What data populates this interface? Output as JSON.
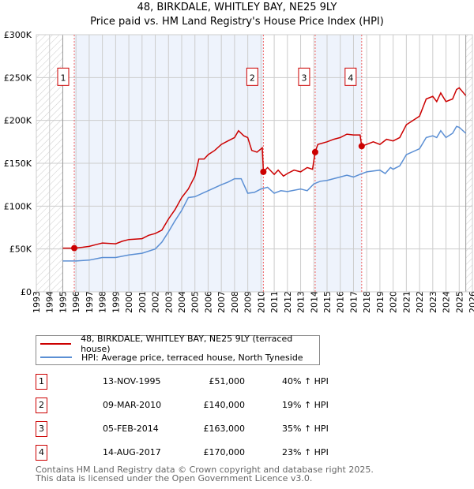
{
  "title_line1": "48, BIRKDALE, WHITLEY BAY, NE25 9LY",
  "title_line2": "Price paid vs. HM Land Registry's House Price Index (HPI)",
  "chart_data": {
    "type": "line",
    "title": "Price paid vs. HM Land Registry's House Price Index (HPI)",
    "xlim": [
      1993,
      2026
    ],
    "ylim": [
      0,
      300000
    ],
    "y_ticks": [
      0,
      50000,
      100000,
      150000,
      200000,
      250000,
      300000
    ],
    "y_tick_labels": [
      "£0",
      "£50K",
      "£100K",
      "£150K",
      "£200K",
      "£250K",
      "£300K"
    ],
    "x_ticks": [
      "1993",
      "1994",
      "1995",
      "1996",
      "1997",
      "1998",
      "1999",
      "2000",
      "2001",
      "2002",
      "2003",
      "2004",
      "2005",
      "2006",
      "2007",
      "2008",
      "2009",
      "2010",
      "2011",
      "2012",
      "2013",
      "2014",
      "2015",
      "2016",
      "2017",
      "2018",
      "2019",
      "2020",
      "2021",
      "2022",
      "2023",
      "2024",
      "2025",
      "2026"
    ],
    "grid": true,
    "data_range": [
      1995.0,
      2025.5
    ],
    "shaded_ranges": [
      [
        1995.87,
        2010.18
      ],
      [
        2014.1,
        2017.62
      ]
    ],
    "series": [
      {
        "name": "48, BIRKDALE, WHITLEY BAY, NE25 9LY (terraced house)",
        "color": "#cc0000",
        "x": [
          1995.0,
          1995.87,
          1996.5,
          1997,
          1997.5,
          1998,
          1999,
          1999.5,
          2000,
          2001,
          2001.5,
          2002,
          2002.5,
          2003,
          2003.5,
          2004,
          2004.5,
          2005,
          2005.3,
          2005.7,
          2006,
          2006.5,
          2007,
          2007.5,
          2008,
          2008.3,
          2008.7,
          2009,
          2009.3,
          2009.7,
          2010.1,
          2010.18,
          2010.5,
          2011,
          2011.3,
          2011.7,
          2012,
          2012.5,
          2013,
          2013.5,
          2013.9,
          2014.1,
          2014.3,
          2015,
          2015.5,
          2016,
          2016.5,
          2017,
          2017.5,
          2017.62,
          2018,
          2018.5,
          2019,
          2019.5,
          2020,
          2020.5,
          2021,
          2021.5,
          2022,
          2022.5,
          2023,
          2023.3,
          2023.6,
          2024,
          2024.5,
          2024.8,
          2025,
          2025.5
        ],
        "y": [
          51000,
          51000,
          52000,
          53000,
          55000,
          57000,
          56000,
          59000,
          61000,
          62000,
          66000,
          68000,
          72000,
          85000,
          96000,
          110000,
          120000,
          135000,
          155000,
          155000,
          160000,
          165000,
          172000,
          176000,
          180000,
          188000,
          182000,
          180000,
          165000,
          163000,
          168000,
          140000,
          145000,
          137000,
          142000,
          135000,
          138000,
          142000,
          140000,
          145000,
          143000,
          163000,
          172000,
          175000,
          178000,
          180000,
          184000,
          183000,
          183000,
          170000,
          172000,
          175000,
          172000,
          178000,
          176000,
          180000,
          195000,
          200000,
          205000,
          225000,
          228000,
          222000,
          232000,
          222000,
          225000,
          236000,
          238000,
          229000
        ]
      },
      {
        "name": "HPI: Average price, terraced house, North Tyneside",
        "color": "#5b8fd4",
        "x": [
          1995,
          1996,
          1997,
          1998,
          1999,
          2000,
          2001,
          2002,
          2002.5,
          2003,
          2003.5,
          2004,
          2004.5,
          2005,
          2006,
          2007,
          2007.5,
          2008,
          2008.5,
          2009,
          2009.5,
          2010,
          2010.5,
          2011,
          2011.5,
          2012,
          2013,
          2013.5,
          2014,
          2014.5,
          2015,
          2016,
          2016.5,
          2017,
          2017.5,
          2018,
          2019,
          2019.4,
          2019.8,
          2020,
          2020.5,
          2021,
          2022,
          2022.5,
          2023,
          2023.3,
          2023.6,
          2024,
          2024.5,
          2024.8,
          2025,
          2025.5
        ],
        "y": [
          36000,
          36000,
          37000,
          40000,
          40000,
          43000,
          45000,
          50000,
          58000,
          70000,
          83000,
          95000,
          110000,
          111000,
          118000,
          125000,
          128000,
          132000,
          132000,
          115000,
          116000,
          120000,
          122000,
          115000,
          118000,
          117000,
          120000,
          118000,
          126000,
          129000,
          130000,
          134000,
          136000,
          134000,
          137000,
          140000,
          142000,
          138000,
          145000,
          143000,
          147000,
          160000,
          167000,
          180000,
          182000,
          180000,
          188000,
          180000,
          185000,
          193000,
          192000,
          185000
        ]
      }
    ],
    "sales": [
      {
        "id": "1",
        "x": 1995.87,
        "y": 51000
      },
      {
        "id": "2",
        "x": 2010.18,
        "y": 140000
      },
      {
        "id": "3",
        "x": 2014.1,
        "y": 163000
      },
      {
        "id": "4",
        "x": 2017.62,
        "y": 170000
      }
    ]
  },
  "legend": {
    "property": "48, BIRKDALE, WHITLEY BAY, NE25 9LY (terraced house)",
    "hpi": "HPI: Average price, terraced house, North Tyneside",
    "property_color": "#cc0000",
    "hpi_color": "#5b8fd4"
  },
  "transactions": [
    {
      "num": "1",
      "date": "13-NOV-1995",
      "price": "£51,000",
      "hpi": "40% ↑ HPI"
    },
    {
      "num": "2",
      "date": "09-MAR-2010",
      "price": "£140,000",
      "hpi": "19% ↑ HPI"
    },
    {
      "num": "3",
      "date": "05-FEB-2014",
      "price": "£163,000",
      "hpi": "35% ↑ HPI"
    },
    {
      "num": "4",
      "date": "14-AUG-2017",
      "price": "£170,000",
      "hpi": "23% ↑ HPI"
    }
  ],
  "footer": {
    "line1": "Contains HM Land Registry data © Crown copyright and database right 2025.",
    "line2": "This data is licensed under the Open Government Licence v3.0."
  }
}
